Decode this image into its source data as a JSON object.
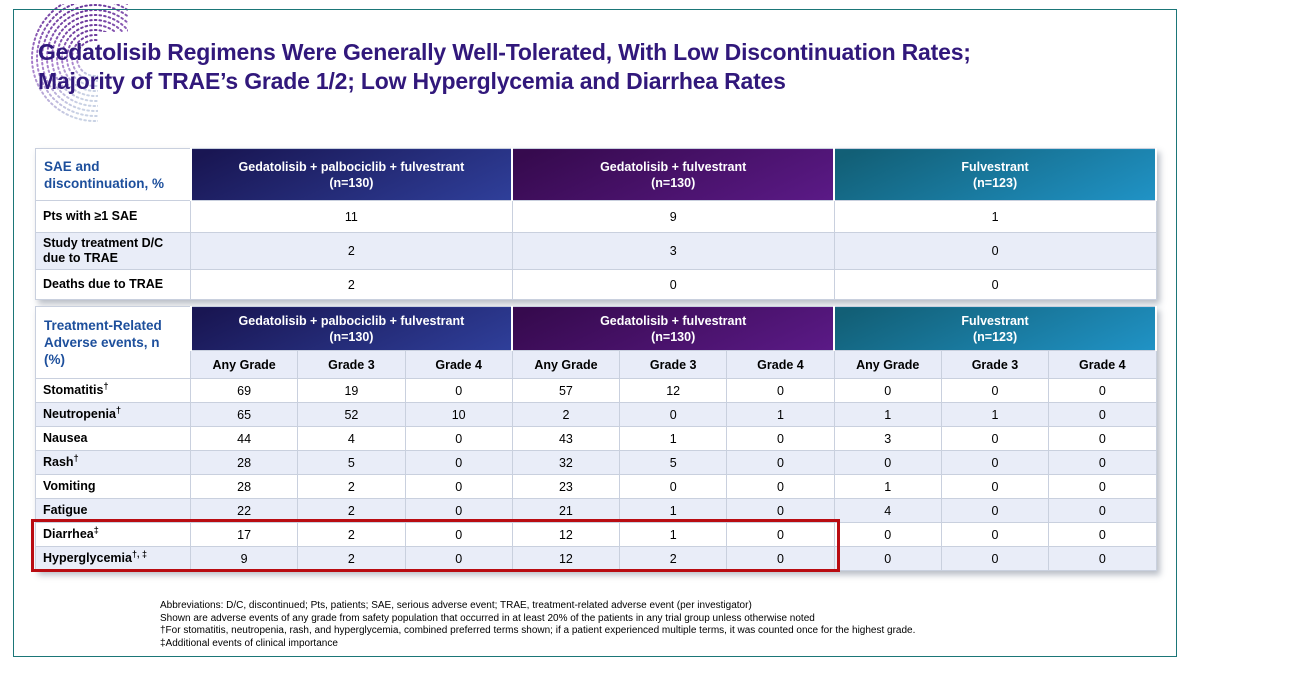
{
  "slide": {
    "title_line1": "Gedatolisib Regimens Were Generally Well-Tolerated, With Low Discontinuation Rates;",
    "title_line2": "Majority of TRAE’s Grade 1/2; Low Hyperglycemia and Diarrhea Rates"
  },
  "groups": [
    {
      "name": "Gedatolisib + palbociclib + fulvestrant",
      "n": "(n=130)"
    },
    {
      "name": "Gedatolisib + fulvestrant",
      "n": "(n=130)"
    },
    {
      "name": "Fulvestrant",
      "n": "(n=123)"
    }
  ],
  "sae_table": {
    "corner_label": "SAE and discontinuation, %",
    "rows": [
      {
        "label": "Pts with ≥1 SAE",
        "values": [
          "11",
          "9",
          "1"
        ]
      },
      {
        "label": "Study treatment D/C due to TRAE",
        "values": [
          "2",
          "3",
          "0"
        ]
      },
      {
        "label": "Deaths due to TRAE",
        "values": [
          "2",
          "0",
          "0"
        ]
      }
    ]
  },
  "trae_table": {
    "corner_label": "Treatment-Related Adverse events, n (%)",
    "grade_headers": [
      "Any Grade",
      "Grade 3",
      "Grade 4"
    ],
    "rows": [
      {
        "label": "Stomatitis",
        "sup": "†",
        "values": [
          "69",
          "19",
          "0",
          "57",
          "12",
          "0",
          "0",
          "0",
          "0"
        ]
      },
      {
        "label": "Neutropenia",
        "sup": "†",
        "values": [
          "65",
          "52",
          "10",
          "2",
          "0",
          "1",
          "1",
          "1",
          "0"
        ]
      },
      {
        "label": "Nausea",
        "sup": "",
        "values": [
          "44",
          "4",
          "0",
          "43",
          "1",
          "0",
          "3",
          "0",
          "0"
        ]
      },
      {
        "label": "Rash",
        "sup": "†",
        "values": [
          "28",
          "5",
          "0",
          "32",
          "5",
          "0",
          "0",
          "0",
          "0"
        ]
      },
      {
        "label": "Vomiting",
        "sup": "",
        "values": [
          "28",
          "2",
          "0",
          "23",
          "0",
          "0",
          "1",
          "0",
          "0"
        ]
      },
      {
        "label": "Fatigue",
        "sup": "",
        "values": [
          "22",
          "2",
          "0",
          "21",
          "1",
          "0",
          "4",
          "0",
          "0"
        ]
      },
      {
        "label": "Diarrhea",
        "sup": "‡",
        "values": [
          "17",
          "2",
          "0",
          "12",
          "1",
          "0",
          "0",
          "0",
          "0"
        ]
      },
      {
        "label": "Hyperglycemia",
        "sup": "†, ‡",
        "values": [
          "9",
          "2",
          "0",
          "12",
          "2",
          "0",
          "0",
          "0",
          "0"
        ]
      }
    ]
  },
  "footnotes": [
    "Abbreviations: D/C, discontinued; Pts, patients; SAE, serious adverse event; TRAE, treatment-related adverse event (per investigator)",
    "Shown are adverse events of any grade from safety population that occurred in at least 20% of the patients in any trial group unless otherwise noted",
    "†For stomatitis, neutropenia, rash, and hyperglycemia, combined preferred terms shown; if a patient experienced multiple terms, it was counted once for the highest grade.",
    "‡Additional events of clinical importance"
  ],
  "colors": {
    "title_text": "#31187B",
    "corner_label_text": "#1D4F9C",
    "group1_gradient": [
      "#191653",
      "#2F3F9A"
    ],
    "group2_gradient": [
      "#360A4E",
      "#5B1A87"
    ],
    "group3_gradient": [
      "#125F76",
      "#2093C6"
    ],
    "alt_row_background": "#E9EDF8",
    "slide_border": "#1B7678",
    "highlight_box": "#B90C12"
  }
}
